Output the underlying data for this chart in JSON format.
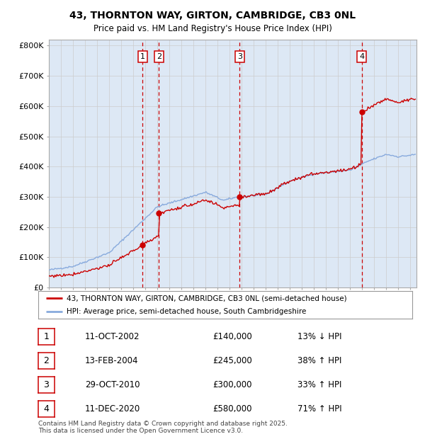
{
  "title1": "43, THORNTON WAY, GIRTON, CAMBRIDGE, CB3 0NL",
  "title2": "Price paid vs. HM Land Registry's House Price Index (HPI)",
  "ylabel_ticks": [
    "£0",
    "£100K",
    "£200K",
    "£300K",
    "£400K",
    "£500K",
    "£600K",
    "£700K",
    "£800K"
  ],
  "ytick_vals": [
    0,
    100000,
    200000,
    300000,
    400000,
    500000,
    600000,
    700000,
    800000
  ],
  "ylim": [
    0,
    820000
  ],
  "xlim": [
    1995,
    2025.5
  ],
  "transactions": [
    {
      "num": 1,
      "date": "11-OCT-2002",
      "price": 140000,
      "pct": "13%",
      "dir": "↓",
      "year_x": 2002.78
    },
    {
      "num": 2,
      "date": "13-FEB-2004",
      "price": 245000,
      "pct": "38%",
      "dir": "↑",
      "year_x": 2004.12
    },
    {
      "num": 3,
      "date": "29-OCT-2010",
      "price": 300000,
      "pct": "33%",
      "dir": "↑",
      "year_x": 2010.83
    },
    {
      "num": 4,
      "date": "11-DEC-2020",
      "price": 580000,
      "pct": "71%",
      "dir": "↑",
      "year_x": 2020.95
    }
  ],
  "legend_property": "43, THORNTON WAY, GIRTON, CAMBRIDGE, CB3 0NL (semi-detached house)",
  "legend_hpi": "HPI: Average price, semi-detached house, South Cambridgeshire",
  "footer1": "Contains HM Land Registry data © Crown copyright and database right 2025.",
  "footer2": "This data is licensed under the Open Government Licence v3.0.",
  "property_color": "#cc0000",
  "hpi_color": "#88aadd",
  "chart_bg": "#dde8f5",
  "fig_bg": "#ffffff",
  "transaction_box_color": "#cc0000",
  "grid_color": "#cccccc",
  "dot_color": "#cc0000"
}
